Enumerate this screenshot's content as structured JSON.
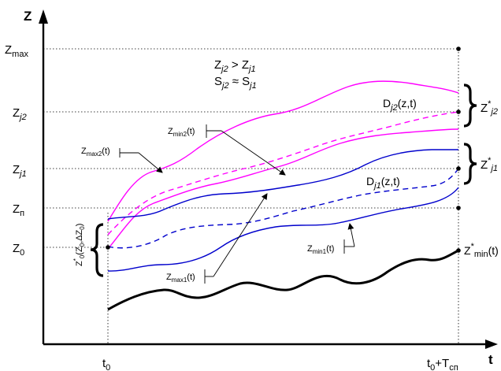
{
  "axes": {
    "z_label": "Z",
    "t_label": "t",
    "t0": {
      "base": "t",
      "sub": "0"
    },
    "t_end": {
      "base": "t",
      "sub": "0",
      "plus": "+T",
      "sub2": "сп"
    }
  },
  "z_levels": {
    "zmax": {
      "base": "Z",
      "sub": "max"
    },
    "zj2": {
      "base": "Z",
      "sub": "j2"
    },
    "zj1": {
      "base": "Z",
      "sub": "j1"
    },
    "zp": {
      "base": "Z",
      "sub": "п"
    },
    "z0": {
      "base": "Z",
      "sub": "0"
    }
  },
  "conditions": {
    "line1": {
      "a": "Z",
      "a_sub": "j2",
      "op": " > ",
      "b": "Z",
      "b_sub": "j1"
    },
    "line2": {
      "a": "S",
      "a_sub": "j2",
      "op": " ≈ ",
      "b": "S",
      "b_sub": "j1"
    }
  },
  "labels": {
    "dj2": {
      "base": "D",
      "sub": "j2",
      "rest": "(z,t)"
    },
    "dj1": {
      "base": "D",
      "sub": "j1",
      "rest": "(z,t)"
    },
    "zmax2": {
      "base": "Z",
      "sub": "max2",
      "rest": "(t)"
    },
    "zmin2": {
      "base": "Z",
      "sub": "min2",
      "rest": "(t)"
    },
    "zmin1": {
      "base": "Z",
      "sub": "min1",
      "rest": "(t)"
    },
    "zmax1": {
      "base": "Z",
      "sub": "max1",
      "rest": "(t)"
    },
    "zstar_j2": {
      "base": "Z",
      "sup": "*",
      "sub": "j2"
    },
    "zstar_j1": {
      "base": "Z",
      "sup": "*",
      "sub": "j1"
    },
    "zstar_min": {
      "base": "Z",
      "sup": "*",
      "sub": "min",
      "rest": "(t)"
    },
    "z0_init": {
      "base": "Z",
      "sup": "*",
      "sub": "0",
      "rest": "(Z",
      "rest_sub": "0",
      "rest2": ",ΔZ",
      "rest2_sub": "0",
      "close": ")"
    }
  },
  "colors": {
    "upper_family": "#ff00ff",
    "lower_family": "#0000cc",
    "min_trajectory": "#000000"
  }
}
